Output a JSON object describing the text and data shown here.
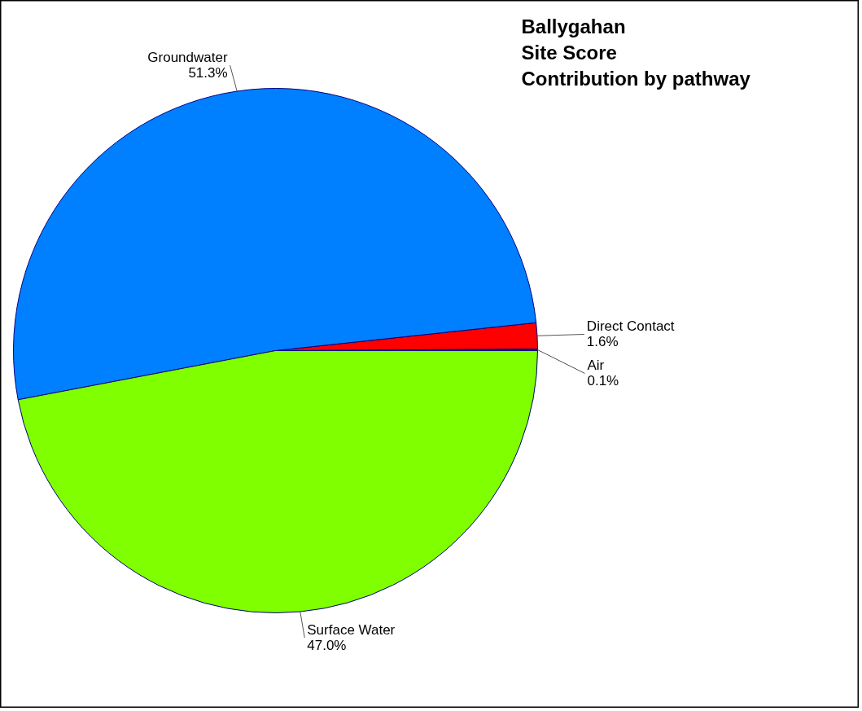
{
  "chart_data": {
    "type": "pie",
    "title": "Ballygahan\nSite Score\nContribution by pathway",
    "categories": [
      "Air",
      "Direct Contact",
      "Groundwater",
      "Surface Water"
    ],
    "values": [
      0.1,
      1.6,
      51.3,
      47.0
    ],
    "colors": [
      "#000080",
      "#ff0000",
      "#0080ff",
      "#80ff00"
    ],
    "value_labels": [
      "0.1%",
      "1.6%",
      "51.3%",
      "47.0%"
    ]
  }
}
